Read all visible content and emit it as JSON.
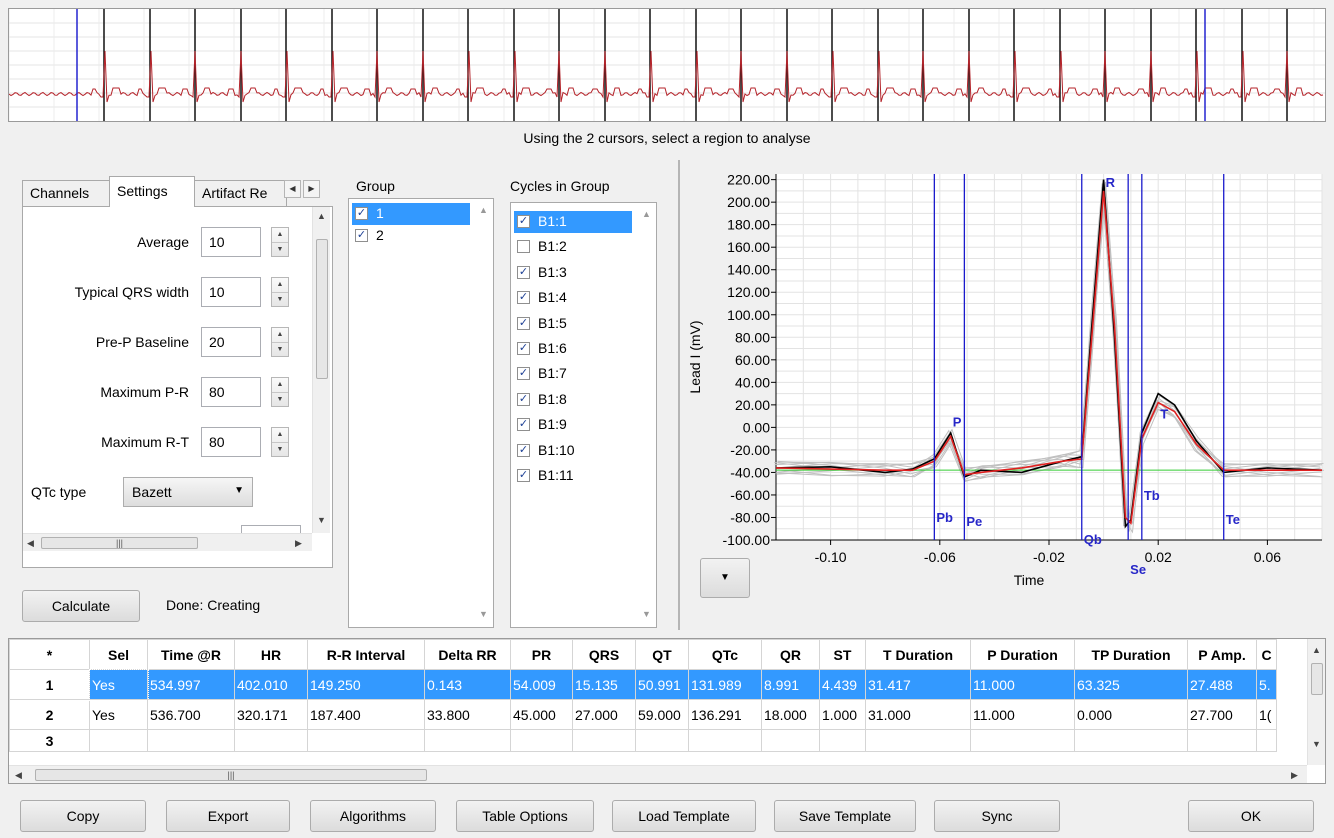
{
  "instruction": "Using the 2 cursors, select a region to analyse",
  "tabs": [
    {
      "label": "Channels",
      "active": false
    },
    {
      "label": "Settings",
      "active": true
    },
    {
      "label": "Artifact Re",
      "active": false
    }
  ],
  "settings": {
    "average_label": "Average",
    "average_value": "10",
    "qrs_label": "Typical QRS width",
    "qrs_value": "10",
    "prep_label": "Pre-P Baseline",
    "prep_value": "20",
    "maxpr_label": "Maximum P-R",
    "maxpr_value": "80",
    "maxrt_label": "Maximum R-T",
    "maxrt_value": "80",
    "qtc_label": "QTc type",
    "qtc_value": "Bazett"
  },
  "calculate_label": "Calculate",
  "status_text": "Done: Creating",
  "group": {
    "header": "Group",
    "items": [
      {
        "label": "1",
        "checked": true,
        "selected": true
      },
      {
        "label": "2",
        "checked": true,
        "selected": false
      }
    ]
  },
  "cycles": {
    "header": "Cycles in Group",
    "items": [
      {
        "label": "B1:1",
        "checked": true,
        "selected": true
      },
      {
        "label": "B1:2",
        "checked": false,
        "selected": false
      },
      {
        "label": "B1:3",
        "checked": true,
        "selected": false
      },
      {
        "label": "B1:4",
        "checked": true,
        "selected": false
      },
      {
        "label": "B1:5",
        "checked": true,
        "selected": false
      },
      {
        "label": "B1:6",
        "checked": true,
        "selected": false
      },
      {
        "label": "B1:7",
        "checked": true,
        "selected": false
      },
      {
        "label": "B1:8",
        "checked": true,
        "selected": false
      },
      {
        "label": "B1:9",
        "checked": true,
        "selected": false
      },
      {
        "label": "B1:10",
        "checked": true,
        "selected": false
      },
      {
        "label": "B1:11",
        "checked": true,
        "selected": false
      }
    ]
  },
  "plot": {
    "ylabel": "Lead I (mV)",
    "xlabel": "Time",
    "yticks": [
      "220.00",
      "200.00",
      "180.00",
      "160.00",
      "140.00",
      "120.00",
      "100.00",
      "80.00",
      "60.00",
      "40.00",
      "20.00",
      "0.00",
      "-20.00",
      "-40.00",
      "-60.00",
      "-80.00",
      "-100.00"
    ],
    "xticks": [
      "-0.10",
      "-0.06",
      "-0.02",
      "0.02",
      "0.06"
    ],
    "markers": [
      "P",
      "Pb",
      "Pe",
      "Qb",
      "R",
      "Se",
      "Tb",
      "T",
      "Te"
    ],
    "colors": {
      "marker_line": "#1a1acc",
      "average": "#e02020",
      "selected": "#000000",
      "others": "#c0c0c0",
      "baseline": "#33cc33"
    }
  },
  "chart_data": {
    "type": "line",
    "title": "",
    "xlabel": "Time",
    "ylabel": "Lead I (mV)",
    "xlim": [
      -0.12,
      0.08
    ],
    "ylim": [
      -100,
      225
    ],
    "baseline": -38,
    "marker_times": {
      "Pb": -0.062,
      "P": -0.056,
      "Pe": -0.051,
      "Qb": -0.008,
      "R": 0.0,
      "Se": 0.009,
      "Tb": 0.014,
      "T": 0.02,
      "Te": 0.044
    },
    "series": [
      {
        "x": [
          -0.12,
          -0.1,
          -0.08,
          -0.07,
          -0.062,
          -0.056,
          -0.051,
          -0.045,
          -0.03,
          -0.015,
          -0.008,
          -0.004,
          0.0,
          0.004,
          0.008,
          0.01,
          0.014,
          0.02,
          0.026,
          0.034,
          0.044,
          0.06,
          0.08
        ],
        "values": [
          -36,
          -37,
          -38,
          -38,
          -30,
          -8,
          -42,
          -40,
          -36,
          -30,
          -28,
          90,
          210,
          90,
          -80,
          -85,
          -10,
          22,
          14,
          -15,
          -38,
          -38,
          -38
        ]
      },
      {
        "x": [
          -0.12,
          -0.1,
          -0.08,
          -0.07,
          -0.062,
          -0.056,
          -0.051,
          -0.045,
          -0.03,
          -0.015,
          -0.008,
          -0.004,
          0.0,
          0.004,
          0.008,
          0.01,
          0.014,
          0.02,
          0.026,
          0.034,
          0.044,
          0.06,
          0.08
        ],
        "values": [
          -36,
          -35,
          -40,
          -37,
          -28,
          -5,
          -44,
          -38,
          -40,
          -30,
          -26,
          100,
          220,
          80,
          -88,
          -82,
          -5,
          30,
          20,
          -12,
          -40,
          -36,
          -38
        ]
      }
    ]
  },
  "table": {
    "columns": [
      "*",
      "Sel",
      "Time @R",
      "HR",
      "R-R Interval",
      "Delta RR",
      "PR",
      "QRS",
      "QT",
      "QTc",
      "QR",
      "ST",
      "T Duration",
      "P Duration",
      "TP Duration",
      "P Amp.",
      "C"
    ],
    "rows": [
      {
        "id": "1",
        "selected": true,
        "cells": [
          "Yes",
          "534.997",
          "402.010",
          "149.250",
          "0.143",
          "54.009",
          "15.135",
          "50.991",
          "131.989",
          "8.991",
          "4.439",
          "31.417",
          "11.000",
          "63.325",
          "27.488",
          "5."
        ]
      },
      {
        "id": "2",
        "selected": false,
        "cells": [
          "Yes",
          "536.700",
          "320.171",
          "187.400",
          "33.800",
          "45.000",
          "27.000",
          "59.000",
          "136.291",
          "18.000",
          "1.000",
          "31.000",
          "11.000",
          "0.000",
          "27.700",
          "1("
        ]
      },
      {
        "id": "3",
        "selected": false,
        "cells": [
          "",
          "",
          "",
          "",
          "",
          "",
          "",
          "",
          "",
          "",
          "",
          "",
          "",
          "",
          "",
          ""
        ]
      }
    ]
  },
  "buttons": {
    "copy": "Copy",
    "export": "Export",
    "algorithms": "Algorithms",
    "table_options": "Table Options",
    "load_template": "Load Template",
    "save_template": "Save Template",
    "sync": "Sync",
    "ok": "OK"
  }
}
